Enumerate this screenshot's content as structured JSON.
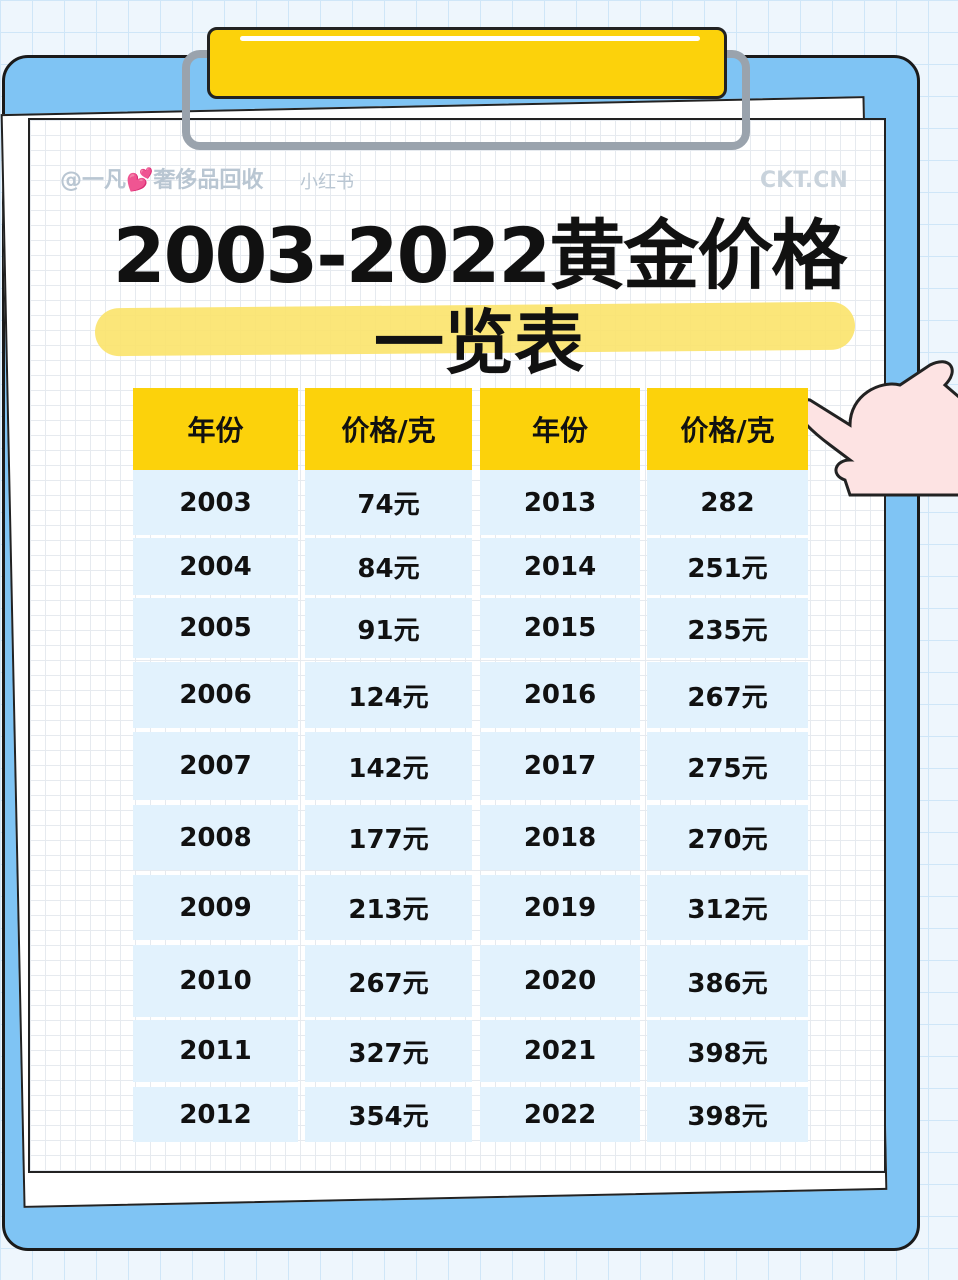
{
  "title": "2003-2022黄金价格",
  "subtitle": "一览表",
  "headers": [
    "年份",
    "价格/克",
    "年份",
    "价格/克"
  ],
  "rows": [
    [
      "2003",
      "74元",
      "2013",
      "282"
    ],
    [
      "2004",
      "84元",
      "2014",
      "251元"
    ],
    [
      "2005",
      "91元",
      "2015",
      "235元"
    ],
    [
      "2006",
      "124元",
      "2016",
      "267元"
    ],
    [
      "2007",
      "142元",
      "2017",
      "275元"
    ],
    [
      "2008",
      "177元",
      "2018",
      "270元"
    ],
    [
      "2009",
      "213元",
      "2019",
      "312元"
    ],
    [
      "2010",
      "267元",
      "2020",
      "386元"
    ],
    [
      "2011",
      "327元",
      "2021",
      "398元"
    ],
    [
      "2012",
      "354元",
      "2022",
      "398元"
    ]
  ],
  "watermark": {
    "text": "@一凡💕奢侈品回收",
    "source": "小红书",
    "brand": "CKT.CN"
  },
  "colors": {
    "header": "#fcd20b",
    "row": "#e2f2fd",
    "board": "#7fc4f4"
  }
}
